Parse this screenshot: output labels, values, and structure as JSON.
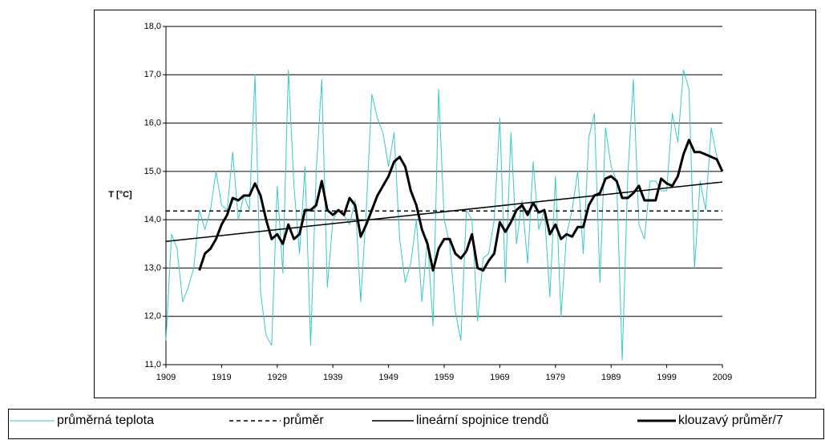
{
  "chart_data": {
    "type": "line",
    "ylabel": "T [°C]",
    "x": [
      1909,
      1910,
      1911,
      1912,
      1913,
      1914,
      1915,
      1916,
      1917,
      1918,
      1919,
      1920,
      1921,
      1922,
      1923,
      1924,
      1925,
      1926,
      1927,
      1928,
      1929,
      1930,
      1931,
      1932,
      1933,
      1934,
      1935,
      1936,
      1937,
      1938,
      1939,
      1940,
      1941,
      1942,
      1943,
      1944,
      1945,
      1946,
      1947,
      1948,
      1949,
      1950,
      1951,
      1952,
      1953,
      1954,
      1955,
      1956,
      1957,
      1958,
      1959,
      1960,
      1961,
      1962,
      1963,
      1964,
      1965,
      1966,
      1967,
      1968,
      1969,
      1970,
      1971,
      1972,
      1973,
      1974,
      1975,
      1976,
      1977,
      1978,
      1979,
      1980,
      1981,
      1982,
      1983,
      1984,
      1985,
      1986,
      1987,
      1988,
      1989,
      1990,
      1991,
      1992,
      1993,
      1994,
      1995,
      1996,
      1997,
      1998,
      1999,
      2000,
      2001,
      2002,
      2003,
      2004,
      2005,
      2006,
      2007,
      2008,
      2009
    ],
    "series": [
      {
        "name": "průměrná teplota",
        "color": "#3cc8c8",
        "style": "thin",
        "values": [
          11.5,
          13.7,
          13.4,
          12.3,
          12.6,
          13.0,
          14.2,
          13.8,
          14.2,
          15.0,
          14.3,
          14.2,
          15.4,
          14.0,
          14.5,
          14.2,
          17.0,
          12.5,
          11.6,
          11.4,
          14.7,
          12.9,
          17.1,
          14.7,
          13.3,
          15.1,
          11.4,
          15.0,
          16.9,
          12.6,
          14.0,
          14.2,
          14.1,
          13.9,
          14.4,
          12.3,
          14.2,
          16.6,
          16.1,
          15.8,
          15.1,
          15.8,
          13.6,
          12.7,
          13.1,
          14.0,
          12.3,
          13.6,
          11.8,
          16.7,
          14.0,
          13.5,
          12.1,
          11.5,
          14.2,
          14.0,
          11.9,
          13.2,
          13.3,
          14.0,
          16.1,
          12.7,
          15.8,
          13.5,
          14.4,
          13.1,
          15.2,
          13.8,
          14.2,
          12.4,
          14.9,
          12.0,
          13.7,
          14.2,
          15.0,
          13.3,
          15.7,
          16.2,
          12.7,
          15.9,
          15.1,
          14.8,
          11.1,
          14.9,
          16.9,
          13.9,
          13.6,
          14.8,
          14.8,
          14.6,
          14.6,
          16.2,
          15.6,
          17.1,
          16.7,
          13.0,
          14.8,
          14.2,
          15.9,
          15.3,
          15.0
        ]
      },
      {
        "name": "průměr",
        "color": "#000000",
        "style": "dashed",
        "x": [
          1909,
          2009
        ],
        "values": [
          14.18,
          14.18
        ]
      },
      {
        "name": "lineární spojnice trendů",
        "color": "#000000",
        "style": "solid",
        "x": [
          1909,
          2009
        ],
        "values": [
          13.55,
          14.78
        ]
      },
      {
        "name": "klouzavý průměr/7",
        "color": "#000000",
        "style": "thick",
        "values": [
          null,
          null,
          null,
          null,
          null,
          null,
          12.95,
          13.3,
          13.4,
          13.6,
          13.9,
          14.1,
          14.45,
          14.4,
          14.5,
          14.5,
          14.75,
          14.5,
          14.0,
          13.6,
          13.7,
          13.5,
          13.9,
          13.6,
          13.7,
          14.2,
          14.2,
          14.3,
          14.8,
          14.2,
          14.1,
          14.2,
          14.1,
          14.45,
          14.3,
          13.65,
          13.9,
          14.2,
          14.5,
          14.7,
          14.9,
          15.2,
          15.3,
          15.1,
          14.6,
          14.3,
          13.8,
          13.5,
          12.95,
          13.4,
          13.6,
          13.6,
          13.3,
          13.2,
          13.35,
          13.7,
          13.0,
          12.95,
          13.15,
          13.3,
          13.95,
          13.75,
          13.95,
          14.2,
          14.3,
          14.1,
          14.35,
          14.15,
          14.2,
          13.7,
          13.9,
          13.6,
          13.7,
          13.65,
          13.85,
          13.85,
          14.3,
          14.5,
          14.55,
          14.85,
          14.9,
          14.8,
          14.45,
          14.45,
          14.55,
          14.7,
          14.4,
          14.4,
          14.4,
          14.85,
          14.75,
          14.7,
          14.9,
          15.35,
          15.65,
          15.4,
          15.4,
          15.35,
          15.3,
          15.25,
          15.0
        ]
      }
    ],
    "xlim": [
      1909,
      2009
    ],
    "xticks": [
      1909,
      1919,
      1929,
      1939,
      1949,
      1959,
      1969,
      1979,
      1989,
      1999,
      2009
    ],
    "ylim": [
      11,
      18
    ],
    "yticks": [
      {
        "value": 11,
        "label": "11,0"
      },
      {
        "value": 12,
        "label": "12,0"
      },
      {
        "value": 13,
        "label": "13,0"
      },
      {
        "value": 14,
        "label": "14,0"
      },
      {
        "value": 15,
        "label": "15,0"
      },
      {
        "value": 16,
        "label": "16,0"
      },
      {
        "value": 17,
        "label": "17,0"
      },
      {
        "value": 18,
        "label": "18,0"
      }
    ],
    "grid": true,
    "legend": "bottom"
  }
}
